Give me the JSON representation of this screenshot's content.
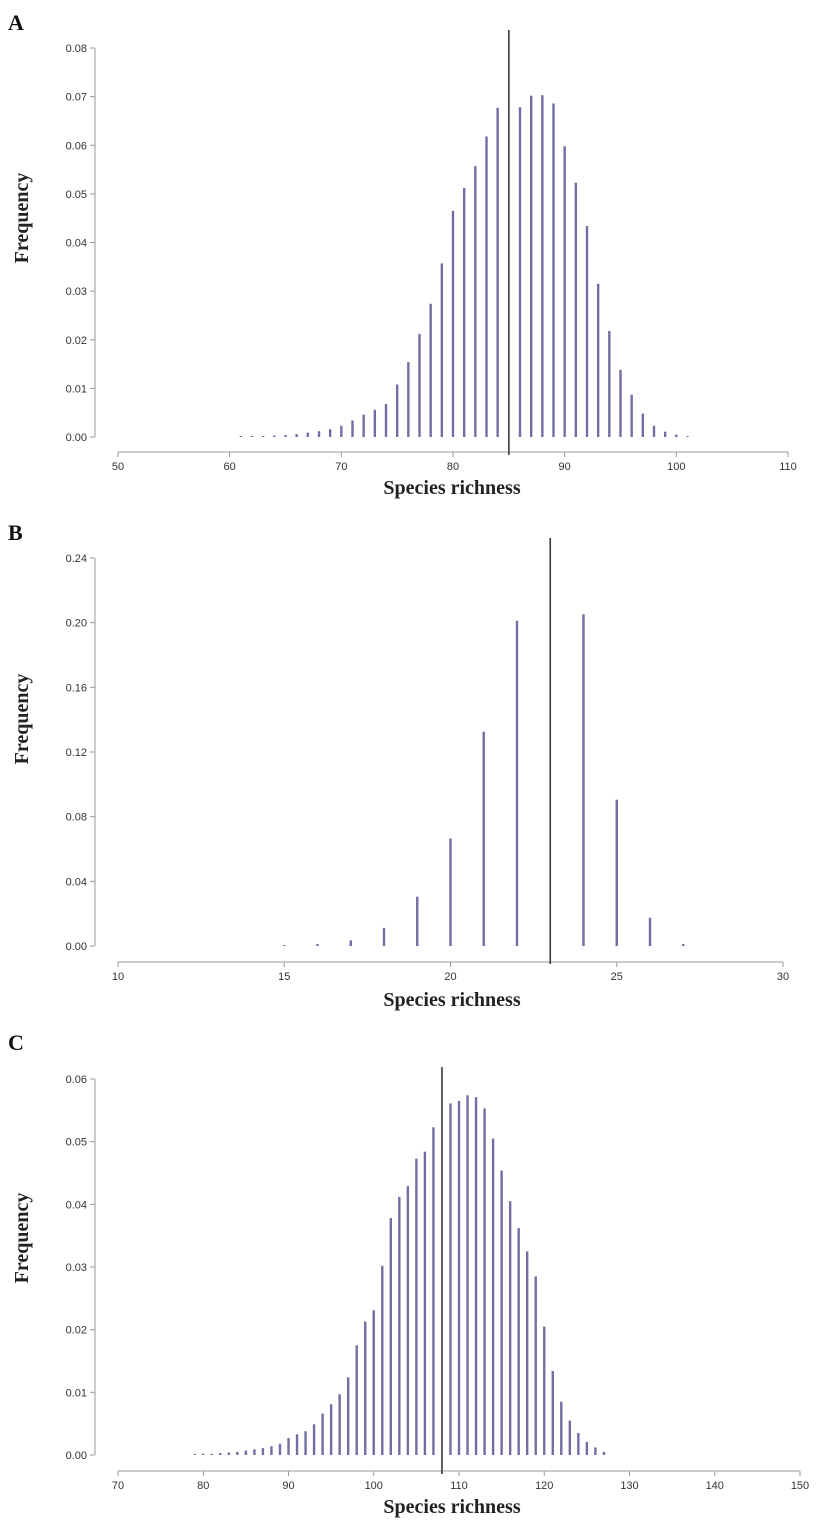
{
  "figure": {
    "ylabel": "Frequency",
    "xlabel": "Species richness"
  },
  "colors": {
    "bar": "#6f6fa4",
    "observed_line": "#3a3a3a",
    "axis": "#9a9a9a",
    "text": "#333333"
  },
  "chart_data": [
    {
      "type": "bar",
      "panel": "A",
      "xlabel": "Species richness",
      "ylabel": "Frequency",
      "xlim": [
        50,
        110
      ],
      "ylim": [
        0,
        0.08
      ],
      "xticks": [
        50,
        60,
        70,
        80,
        90,
        100,
        110
      ],
      "yticks": [
        "0.00",
        "0.01",
        "0.02",
        "0.03",
        "0.04",
        "0.05",
        "0.06",
        "0.07",
        "0.08"
      ],
      "grid": false,
      "observed_value": 85,
      "x": [
        61,
        62,
        63,
        64,
        65,
        66,
        67,
        68,
        69,
        70,
        71,
        72,
        73,
        74,
        75,
        76,
        77,
        78,
        79,
        80,
        81,
        82,
        83,
        84,
        86,
        87,
        88,
        89,
        90,
        91,
        92,
        93,
        94,
        95,
        96,
        97,
        98,
        99,
        100,
        101
      ],
      "values": [
        0.0001,
        0.0001,
        0.0002,
        0.0003,
        0.0004,
        0.0006,
        0.0009,
        0.0012,
        0.0016,
        0.0023,
        0.0034,
        0.0046,
        0.0056,
        0.0068,
        0.0108,
        0.0154,
        0.0212,
        0.0274,
        0.0357,
        0.0465,
        0.0512,
        0.0557,
        0.0618,
        0.0677,
        0.0678,
        0.0702,
        0.0703,
        0.0686,
        0.0598,
        0.0523,
        0.0434,
        0.0315,
        0.0218,
        0.0138,
        0.0087,
        0.0048,
        0.0023,
        0.0011,
        0.0005,
        0.0002
      ]
    },
    {
      "type": "bar",
      "panel": "B",
      "xlabel": "Species richness",
      "ylabel": "Frequency",
      "xlim": [
        10,
        30
      ],
      "ylim": [
        0,
        0.24
      ],
      "xticks": [
        10,
        15,
        20,
        25,
        30
      ],
      "yticks": [
        "0.00",
        "0.04",
        "0.08",
        "0.12",
        "0.16",
        "0.20",
        "0.24"
      ],
      "grid": false,
      "observed_value": 23,
      "x": [
        15,
        16,
        17,
        18,
        19,
        20,
        21,
        22,
        24,
        25,
        26,
        27
      ],
      "values": [
        0.0003,
        0.0012,
        0.0035,
        0.0112,
        0.0305,
        0.0665,
        0.1325,
        0.2012,
        0.2052,
        0.0905,
        0.0175,
        0.0012
      ]
    },
    {
      "type": "bar",
      "panel": "C",
      "xlabel": "Species richness",
      "ylabel": "Frequency",
      "xlim": [
        70,
        150
      ],
      "ylim": [
        0,
        0.06
      ],
      "xticks": [
        70,
        80,
        90,
        100,
        110,
        120,
        130,
        140,
        150
      ],
      "yticks": [
        "0.00",
        "0.01",
        "0.02",
        "0.03",
        "0.04",
        "0.05",
        "0.06"
      ],
      "grid": false,
      "observed_value": 108,
      "x": [
        79,
        80,
        81,
        82,
        83,
        84,
        85,
        86,
        87,
        88,
        89,
        90,
        91,
        92,
        93,
        94,
        95,
        96,
        97,
        98,
        99,
        100,
        101,
        102,
        103,
        104,
        105,
        106,
        107,
        109,
        110,
        111,
        112,
        113,
        114,
        115,
        116,
        117,
        118,
        119,
        120,
        121,
        122,
        123,
        124,
        125,
        126,
        127
      ],
      "values": [
        0.0001,
        0.0002,
        0.0002,
        0.0003,
        0.0004,
        0.0005,
        0.0007,
        0.0009,
        0.0011,
        0.0014,
        0.0018,
        0.0027,
        0.0033,
        0.0038,
        0.0049,
        0.0066,
        0.0081,
        0.0097,
        0.0124,
        0.0175,
        0.0213,
        0.0231,
        0.0302,
        0.0378,
        0.0412,
        0.0429,
        0.0473,
        0.0484,
        0.0523,
        0.0561,
        0.0565,
        0.0574,
        0.0571,
        0.0553,
        0.0505,
        0.0454,
        0.0405,
        0.0362,
        0.0325,
        0.0285,
        0.0205,
        0.0134,
        0.0085,
        0.0055,
        0.0035,
        0.0021,
        0.0012,
        0.0005
      ]
    }
  ]
}
